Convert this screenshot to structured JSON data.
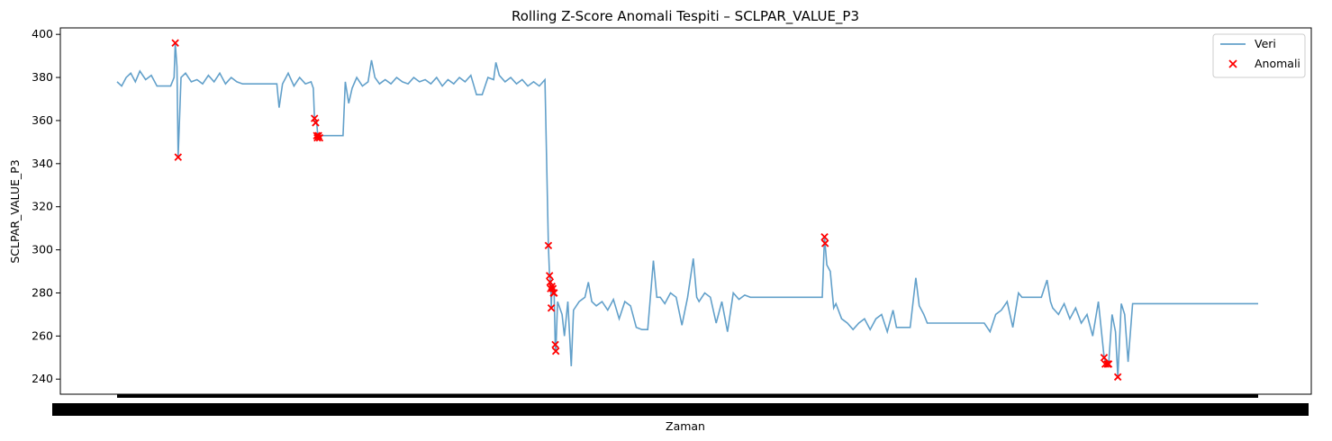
{
  "chart_data": {
    "type": "line",
    "title": "Rolling Z-Score Anomali Tespiti – SCLPAR_VALUE_P3",
    "xlabel": "Zaman",
    "ylabel": "SCLPAR_VALUE_P3",
    "ylim": [
      233,
      403
    ],
    "yticks": [
      240,
      260,
      280,
      300,
      320,
      340,
      360,
      380,
      400
    ],
    "x_tick_labels_overlapping": true,
    "grid": false,
    "legend": "top-right",
    "series": [
      {
        "name": "Veri",
        "kind": "line",
        "color": "#1f77b4",
        "points": [
          [
            0,
            378
          ],
          [
            0.4,
            376
          ],
          [
            0.8,
            380
          ],
          [
            1.2,
            382
          ],
          [
            1.6,
            378
          ],
          [
            2,
            383
          ],
          [
            2.5,
            379
          ],
          [
            3,
            381
          ],
          [
            3.5,
            376
          ],
          [
            4,
            376
          ],
          [
            4.7,
            376
          ],
          [
            5,
            380
          ],
          [
            5.1,
            396
          ],
          [
            5.25,
            385
          ],
          [
            5.35,
            343
          ],
          [
            5.6,
            380
          ],
          [
            6,
            382
          ],
          [
            6.5,
            378
          ],
          [
            7,
            379
          ],
          [
            7.5,
            377
          ],
          [
            8,
            381
          ],
          [
            8.5,
            378
          ],
          [
            9,
            382
          ],
          [
            9.5,
            377
          ],
          [
            10,
            380
          ],
          [
            10.5,
            378
          ],
          [
            11,
            377
          ],
          [
            12,
            377
          ],
          [
            13,
            377
          ],
          [
            14,
            377
          ],
          [
            14.2,
            366
          ],
          [
            14.5,
            377
          ],
          [
            15,
            382
          ],
          [
            15.5,
            376
          ],
          [
            16,
            380
          ],
          [
            16.5,
            377
          ],
          [
            17,
            378
          ],
          [
            17.2,
            375
          ],
          [
            17.3,
            361
          ],
          [
            17.5,
            359
          ],
          [
            17.6,
            352
          ],
          [
            17.8,
            353
          ],
          [
            18,
            353
          ],
          [
            18.5,
            353
          ],
          [
            19,
            353
          ],
          [
            19.8,
            353
          ],
          [
            20,
            378
          ],
          [
            20.3,
            368
          ],
          [
            20.6,
            375
          ],
          [
            21,
            380
          ],
          [
            21.5,
            376
          ],
          [
            22,
            378
          ],
          [
            22.3,
            388
          ],
          [
            22.6,
            380
          ],
          [
            23,
            377
          ],
          [
            23.5,
            379
          ],
          [
            24,
            377
          ],
          [
            24.5,
            380
          ],
          [
            25,
            378
          ],
          [
            25.5,
            377
          ],
          [
            26,
            380
          ],
          [
            26.5,
            378
          ],
          [
            27,
            379
          ],
          [
            27.5,
            377
          ],
          [
            28,
            380
          ],
          [
            28.5,
            376
          ],
          [
            29,
            379
          ],
          [
            29.5,
            377
          ],
          [
            30,
            380
          ],
          [
            30.5,
            378
          ],
          [
            31,
            381
          ],
          [
            31.5,
            372
          ],
          [
            32,
            372
          ],
          [
            32.5,
            380
          ],
          [
            33,
            379
          ],
          [
            33.2,
            387
          ],
          [
            33.5,
            381
          ],
          [
            34,
            378
          ],
          [
            34.5,
            380
          ],
          [
            35,
            377
          ],
          [
            35.5,
            379
          ],
          [
            36,
            376
          ],
          [
            36.5,
            378
          ],
          [
            37,
            376
          ],
          [
            37.5,
            379
          ],
          [
            37.8,
            302
          ],
          [
            37.9,
            288
          ],
          [
            38,
            285
          ],
          [
            38.05,
            273
          ],
          [
            38.1,
            282
          ],
          [
            38.2,
            284
          ],
          [
            38.3,
            280
          ],
          [
            38.4,
            256
          ],
          [
            38.45,
            253
          ],
          [
            38.6,
            276
          ],
          [
            39,
            270
          ],
          [
            39.2,
            260
          ],
          [
            39.5,
            276
          ],
          [
            39.8,
            246
          ],
          [
            40,
            272
          ],
          [
            40.5,
            276
          ],
          [
            41,
            278
          ],
          [
            41.3,
            285
          ],
          [
            41.6,
            276
          ],
          [
            42,
            274
          ],
          [
            42.5,
            276
          ],
          [
            43,
            272
          ],
          [
            43.5,
            277
          ],
          [
            44,
            268
          ],
          [
            44.5,
            276
          ],
          [
            45,
            274
          ],
          [
            45.5,
            264
          ],
          [
            46,
            263
          ],
          [
            46.5,
            263
          ],
          [
            47,
            295
          ],
          [
            47.3,
            278
          ],
          [
            47.6,
            278
          ],
          [
            48,
            275
          ],
          [
            48.5,
            280
          ],
          [
            49,
            278
          ],
          [
            49.5,
            265
          ],
          [
            50,
            278
          ],
          [
            50.5,
            296
          ],
          [
            50.8,
            278
          ],
          [
            51,
            276
          ],
          [
            51.5,
            280
          ],
          [
            52,
            278
          ],
          [
            52.5,
            266
          ],
          [
            53,
            276
          ],
          [
            53.5,
            262
          ],
          [
            54,
            280
          ],
          [
            54.5,
            277
          ],
          [
            55,
            279
          ],
          [
            55.5,
            278
          ],
          [
            56,
            278
          ],
          [
            57,
            278
          ],
          [
            58,
            278
          ],
          [
            59,
            278
          ],
          [
            60,
            278
          ],
          [
            61,
            278
          ],
          [
            61.8,
            278
          ],
          [
            62,
            306
          ],
          [
            62.2,
            293
          ],
          [
            62.5,
            290
          ],
          [
            62.8,
            273
          ],
          [
            63,
            275
          ],
          [
            63.5,
            268
          ],
          [
            64,
            266
          ],
          [
            64.5,
            263
          ],
          [
            65,
            266
          ],
          [
            65.5,
            268
          ],
          [
            66,
            263
          ],
          [
            66.5,
            268
          ],
          [
            67,
            270
          ],
          [
            67.5,
            262
          ],
          [
            68,
            272
          ],
          [
            68.3,
            264
          ],
          [
            68.6,
            264
          ],
          [
            69,
            264
          ],
          [
            69.5,
            264
          ],
          [
            70,
            287
          ],
          [
            70.3,
            274
          ],
          [
            70.7,
            270
          ],
          [
            71,
            266
          ],
          [
            72,
            266
          ],
          [
            73,
            266
          ],
          [
            74,
            266
          ],
          [
            75,
            266
          ],
          [
            76,
            266
          ],
          [
            76.5,
            262
          ],
          [
            77,
            270
          ],
          [
            77.5,
            272
          ],
          [
            78,
            276
          ],
          [
            78.5,
            264
          ],
          [
            79,
            280
          ],
          [
            79.3,
            278
          ],
          [
            80,
            278
          ],
          [
            81,
            278
          ],
          [
            81.5,
            286
          ],
          [
            81.8,
            276
          ],
          [
            82,
            273
          ],
          [
            82.5,
            270
          ],
          [
            83,
            275
          ],
          [
            83.5,
            268
          ],
          [
            84,
            273
          ],
          [
            84.5,
            266
          ],
          [
            85,
            270
          ],
          [
            85.5,
            260
          ],
          [
            86,
            276
          ],
          [
            86.5,
            250
          ],
          [
            86.7,
            247
          ],
          [
            86.9,
            247
          ],
          [
            87.2,
            270
          ],
          [
            87.5,
            262
          ],
          [
            87.7,
            241
          ],
          [
            88,
            275
          ],
          [
            88.3,
            270
          ],
          [
            88.6,
            248
          ],
          [
            89,
            275
          ],
          [
            90,
            275
          ],
          [
            92,
            275
          ],
          [
            95,
            275
          ],
          [
            98,
            275
          ],
          [
            100,
            275
          ]
        ]
      },
      {
        "name": "Anomali",
        "kind": "scatter",
        "color": "#ff0000",
        "marker": "x",
        "points": [
          [
            5.1,
            396
          ],
          [
            5.35,
            343
          ],
          [
            17.3,
            361
          ],
          [
            17.4,
            359
          ],
          [
            17.5,
            353
          ],
          [
            17.55,
            352
          ],
          [
            17.65,
            353
          ],
          [
            17.75,
            352
          ],
          [
            37.8,
            302
          ],
          [
            37.9,
            288
          ],
          [
            37.95,
            285
          ],
          [
            38.0,
            282
          ],
          [
            38.05,
            273
          ],
          [
            38.1,
            283
          ],
          [
            38.2,
            282
          ],
          [
            38.25,
            280
          ],
          [
            38.3,
            280
          ],
          [
            38.4,
            256
          ],
          [
            38.45,
            253
          ],
          [
            62.0,
            306
          ],
          [
            62.05,
            303
          ],
          [
            86.5,
            250
          ],
          [
            86.6,
            247
          ],
          [
            86.8,
            247
          ],
          [
            86.9,
            247
          ],
          [
            87.7,
            241
          ]
        ]
      }
    ]
  }
}
